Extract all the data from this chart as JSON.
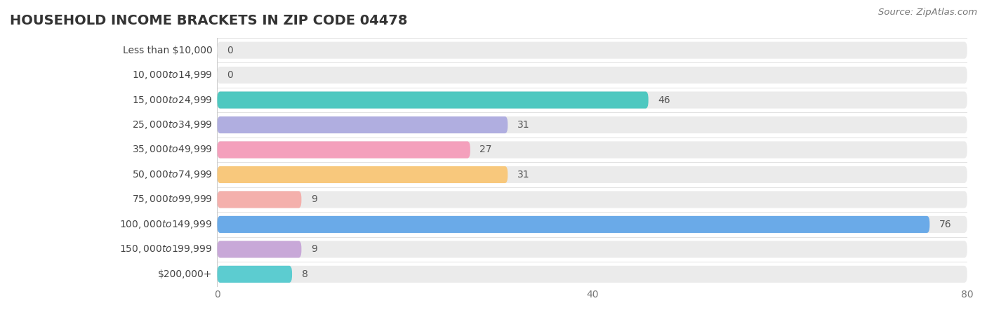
{
  "title": "HOUSEHOLD INCOME BRACKETS IN ZIP CODE 04478",
  "source": "Source: ZipAtlas.com",
  "categories": [
    "Less than $10,000",
    "$10,000 to $14,999",
    "$15,000 to $24,999",
    "$25,000 to $34,999",
    "$35,000 to $49,999",
    "$50,000 to $74,999",
    "$75,000 to $99,999",
    "$100,000 to $149,999",
    "$150,000 to $199,999",
    "$200,000+"
  ],
  "values": [
    0,
    0,
    46,
    31,
    27,
    31,
    9,
    76,
    9,
    8
  ],
  "bar_colors": [
    "#a8cce8",
    "#d8aad8",
    "#4ec8c0",
    "#b0aee0",
    "#f4a0bc",
    "#f8c87c",
    "#f4b0ac",
    "#6aaae8",
    "#c8a8d8",
    "#5cccd0"
  ],
  "bar_background_color": "#ebebeb",
  "xlim": [
    0,
    80
  ],
  "xticks": [
    0,
    40,
    80
  ],
  "title_fontsize": 14,
  "label_fontsize": 10,
  "value_fontsize": 10,
  "source_fontsize": 9.5,
  "bar_height": 0.68
}
